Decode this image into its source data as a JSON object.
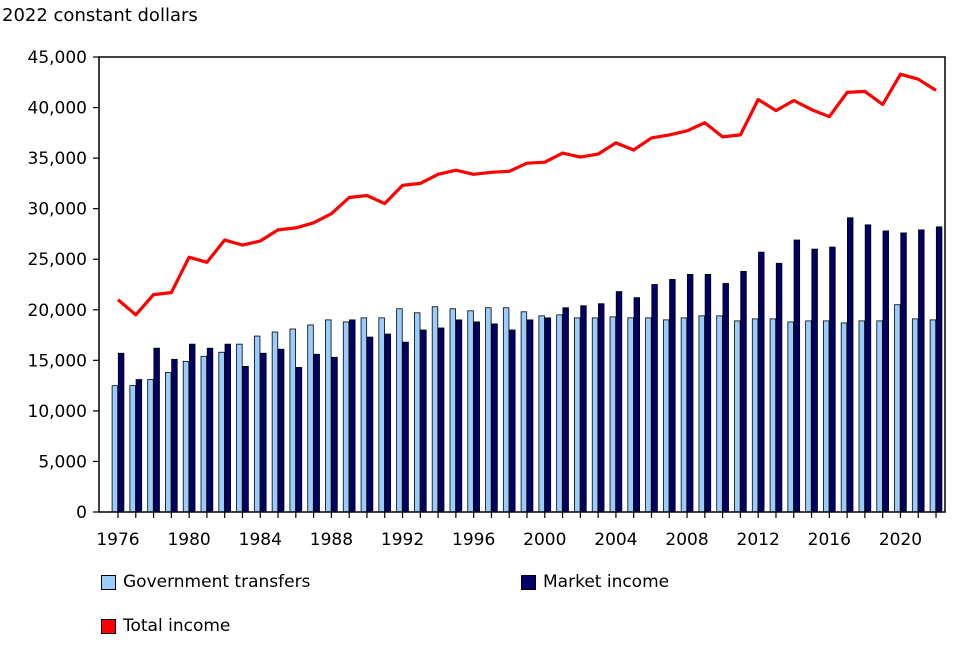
{
  "chart_data": {
    "type": "bar",
    "title": "",
    "ylabel": "2022 constant dollars",
    "xlabel": "",
    "ylim": [
      0,
      45000
    ],
    "yticks": [
      0,
      5000,
      10000,
      15000,
      20000,
      25000,
      30000,
      35000,
      40000,
      45000
    ],
    "ytick_labels": [
      "0",
      "5,000",
      "10,000",
      "15,000",
      "20,000",
      "25,000",
      "30,000",
      "35,000",
      "40,000",
      "45,000"
    ],
    "x": [
      1976,
      1977,
      1978,
      1979,
      1980,
      1981,
      1982,
      1983,
      1984,
      1985,
      1986,
      1987,
      1988,
      1989,
      1990,
      1991,
      1992,
      1993,
      1994,
      1995,
      1996,
      1997,
      1998,
      1999,
      2000,
      2001,
      2002,
      2003,
      2004,
      2005,
      2006,
      2007,
      2008,
      2009,
      2010,
      2011,
      2012,
      2013,
      2014,
      2015,
      2016,
      2017,
      2018,
      2019,
      2020,
      2021,
      2022
    ],
    "xtick_labels": [
      "1976",
      "1980",
      "1984",
      "1988",
      "1992",
      "1996",
      "2000",
      "2004",
      "2008",
      "2012",
      "2016",
      "2020"
    ],
    "xtick_years": [
      1976,
      1980,
      1984,
      1988,
      1992,
      1996,
      2000,
      2004,
      2008,
      2012,
      2016,
      2020
    ],
    "grid": false,
    "legend_position": "bottom",
    "series": [
      {
        "name": "Government transfers",
        "kind": "bar",
        "color": "#99ccff",
        "values": [
          12500,
          12500,
          13100,
          13800,
          14900,
          15400,
          15800,
          16600,
          17400,
          17800,
          18100,
          18500,
          19000,
          18800,
          19200,
          19200,
          20100,
          19700,
          20300,
          20100,
          19900,
          20200,
          20200,
          19800,
          19400,
          19500,
          19200,
          19200,
          19300,
          19200,
          19200,
          19000,
          19200,
          19400,
          19400,
          18900,
          19100,
          19100,
          18800,
          18900,
          18900,
          18700,
          18900,
          18900,
          20500,
          19100,
          19000
        ]
      },
      {
        "name": "Market income",
        "kind": "bar",
        "color": "#000066",
        "values": [
          15700,
          13100,
          16200,
          15100,
          16600,
          16200,
          16600,
          14400,
          15700,
          16100,
          14300,
          15600,
          15300,
          19000,
          17300,
          17600,
          16800,
          18000,
          18200,
          19000,
          18800,
          18600,
          18000,
          19000,
          19200,
          20200,
          20400,
          20600,
          21800,
          21200,
          22500,
          23000,
          23500,
          23500,
          22600,
          23800,
          25700,
          24600,
          26900,
          26000,
          26200,
          29100,
          28400,
          27800,
          27600,
          27900,
          28200
        ]
      },
      {
        "name": "Total income",
        "kind": "line",
        "color": "#ff0000",
        "values": [
          21000,
          19500,
          21500,
          21700,
          25200,
          24700,
          26900,
          26400,
          26800,
          27900,
          28100,
          28600,
          29500,
          31100,
          31300,
          30500,
          32300,
          32500,
          33400,
          33800,
          33400,
          33600,
          33700,
          34500,
          34600,
          35500,
          35100,
          35400,
          36500,
          35800,
          37000,
          37300,
          37700,
          38500,
          37100,
          37300,
          40800,
          39700,
          40700,
          39800,
          39100,
          41500,
          41600,
          40300,
          43300,
          42800,
          41700
        ]
      }
    ]
  },
  "legend": {
    "gov_label": "Government transfers",
    "market_label": "Market income",
    "total_label": "Total income"
  }
}
